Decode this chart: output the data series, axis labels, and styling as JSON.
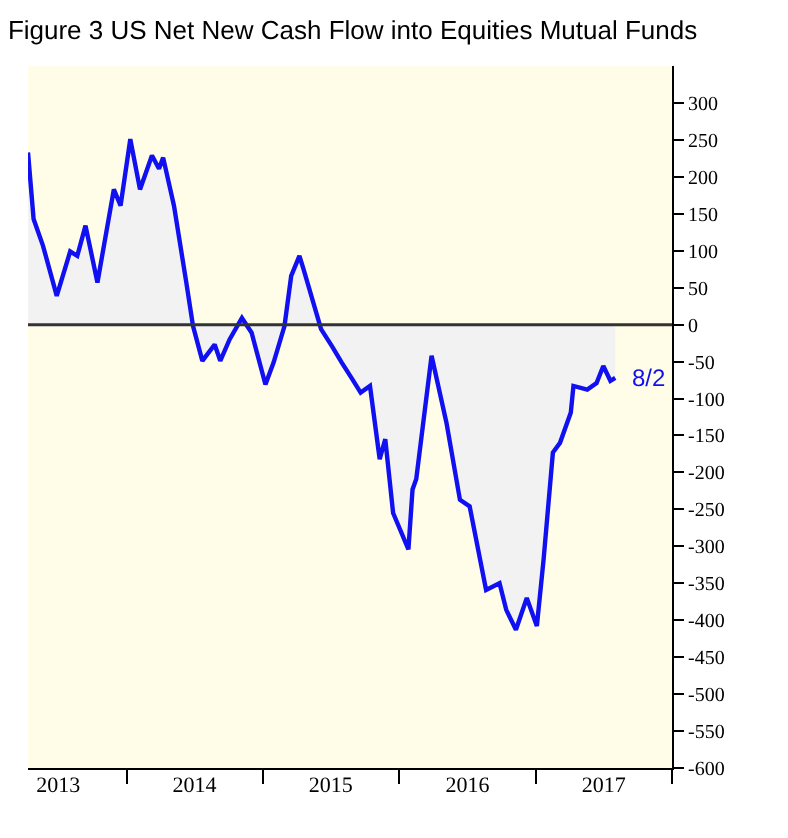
{
  "chart_data": {
    "type": "area",
    "title": "Figure 3 US Net New Cash Flow into Equities Mutual Funds",
    "x": [
      "2013-04-12",
      "2013-04-27",
      "2013-05-22",
      "2013-06-28",
      "2013-08-03",
      "2013-08-22",
      "2013-09-13",
      "2013-10-15",
      "2013-11-28",
      "2013-12-16",
      "2014-01-11",
      "2014-02-06",
      "2014-03-10",
      "2014-03-29",
      "2014-04-09",
      "2014-05-08",
      "2014-06-10",
      "2014-06-28",
      "2014-07-23",
      "2014-08-25",
      "2014-09-09",
      "2014-10-04",
      "2014-11-06",
      "2014-12-02",
      "2015-01-08",
      "2015-01-30",
      "2015-02-28",
      "2015-03-18",
      "2015-04-09",
      "2015-04-20",
      "2015-06-06",
      "2015-07-05",
      "2015-07-31",
      "2015-08-29",
      "2015-09-20",
      "2015-10-15",
      "2015-11-10",
      "2015-11-25",
      "2015-12-16",
      "2016-01-26",
      "2016-02-06",
      "2016-02-16",
      "2016-03-28",
      "2016-05-07",
      "2016-06-12",
      "2016-07-08",
      "2016-08-21",
      "2016-09-26",
      "2016-10-14",
      "2016-11-09",
      "2016-12-08",
      "2017-01-04",
      "2017-01-22",
      "2017-02-16",
      "2017-03-07",
      "2017-04-05",
      "2017-04-12",
      "2017-05-19",
      "2017-06-13",
      "2017-07-01",
      "2017-07-20",
      "2017-08-02"
    ],
    "series": [
      {
        "color": "#1010f0",
        "values": [
          233,
          143,
          107,
          39,
          99,
          93,
          134,
          57,
          183,
          161,
          251,
          183,
          229,
          211,
          226,
          161,
          57,
          -2,
          -49,
          -27,
          -49,
          -20,
          9,
          -11,
          -81,
          -51,
          -2,
          66,
          93,
          75,
          -6,
          -29,
          -51,
          -74,
          -92,
          -83,
          -182,
          -155,
          -255,
          -304,
          -223,
          -209,
          -42,
          -133,
          -237,
          -246,
          -359,
          -350,
          -386,
          -413,
          -370,
          -408,
          -318,
          -173,
          -160,
          -119,
          -83,
          -88,
          -79,
          -56,
          -76,
          -72
        ]
      }
    ],
    "xlim": [
      "2013-04-12",
      "2018-01-01"
    ],
    "xticks": [
      {
        "value": "2013-07-02",
        "label": "2013"
      },
      {
        "value": "2014-01-01",
        "label": null
      },
      {
        "value": "2014-07-02",
        "label": "2014"
      },
      {
        "value": "2015-01-01",
        "label": null
      },
      {
        "value": "2015-07-02",
        "label": "2015"
      },
      {
        "value": "2016-01-01",
        "label": null
      },
      {
        "value": "2016-07-02",
        "label": "2016"
      },
      {
        "value": "2017-01-01",
        "label": null
      },
      {
        "value": "2017-07-02",
        "label": "2017"
      },
      {
        "value": "2018-01-01",
        "label": null
      }
    ],
    "ylim": [
      -600,
      350
    ],
    "yticks": [
      -600,
      -550,
      -500,
      -450,
      -400,
      -350,
      -300,
      -250,
      -200,
      -150,
      -100,
      -50,
      0,
      50,
      100,
      150,
      200,
      250,
      300
    ],
    "ref_lines": [
      {
        "axis": "y",
        "value": 0,
        "color": "#333333"
      }
    ],
    "annotations": [
      {
        "text": "8/2",
        "x": "2017-08-02",
        "y": -72
      }
    ],
    "grid": false
  }
}
